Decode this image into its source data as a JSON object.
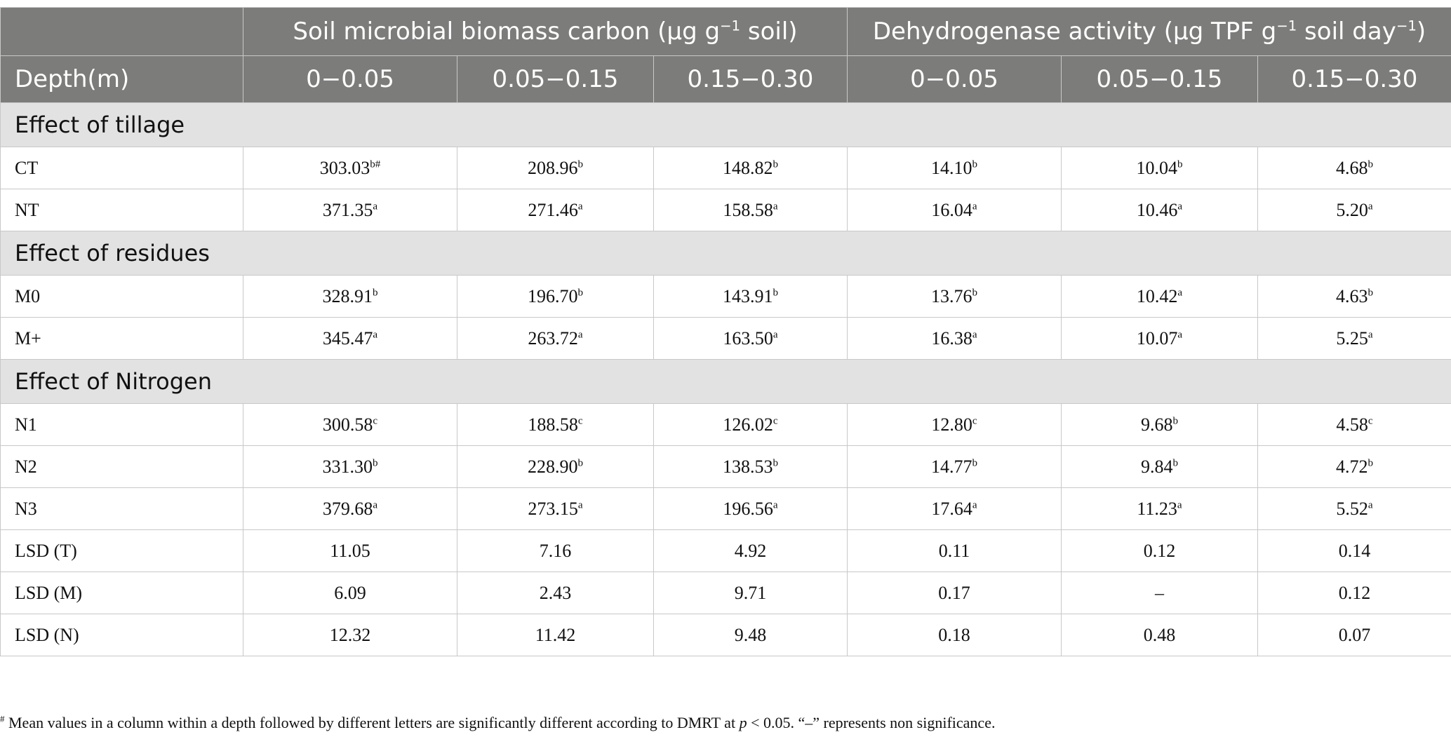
{
  "header": {
    "group1": "Soil microbial biomass carbon (μg g",
    "group1_sup": "−1",
    "group1_end": " soil)",
    "group2": "Dehydrogenase activity (μg TPF g",
    "group2_sup1": "−1",
    "group2_mid": " soil day",
    "group2_sup2": "−1",
    "group2_end": ")",
    "depth_label": "Depth(m)",
    "depths": [
      "0−0.05",
      "0.05−0.15",
      "0.15−0.30",
      "0−0.05",
      "0.05−0.15",
      "0.15−0.30"
    ]
  },
  "sections": [
    {
      "title": "Effect of tillage",
      "rows": [
        {
          "label": "CT",
          "cells": [
            {
              "v": "303.03",
              "s": "b#"
            },
            {
              "v": "208.96",
              "s": "b"
            },
            {
              "v": "148.82",
              "s": "b"
            },
            {
              "v": "14.10",
              "s": "b"
            },
            {
              "v": "10.04",
              "s": "b"
            },
            {
              "v": "4.68",
              "s": "b"
            }
          ]
        },
        {
          "label": "NT",
          "cells": [
            {
              "v": "371.35",
              "s": "a"
            },
            {
              "v": "271.46",
              "s": "a"
            },
            {
              "v": "158.58",
              "s": "a"
            },
            {
              "v": "16.04",
              "s": "a"
            },
            {
              "v": "10.46",
              "s": "a"
            },
            {
              "v": "5.20",
              "s": "a"
            }
          ]
        }
      ]
    },
    {
      "title": "Effect of residues",
      "rows": [
        {
          "label": "M0",
          "cells": [
            {
              "v": "328.91",
              "s": "b"
            },
            {
              "v": "196.70",
              "s": "b"
            },
            {
              "v": "143.91",
              "s": "b"
            },
            {
              "v": "13.76",
              "s": "b"
            },
            {
              "v": "10.42",
              "s": "a"
            },
            {
              "v": "4.63",
              "s": "b"
            }
          ]
        },
        {
          "label": "M+",
          "cells": [
            {
              "v": "345.47",
              "s": "a"
            },
            {
              "v": "263.72",
              "s": "a"
            },
            {
              "v": "163.50",
              "s": "a"
            },
            {
              "v": "16.38",
              "s": "a"
            },
            {
              "v": "10.07",
              "s": "a"
            },
            {
              "v": "5.25",
              "s": "a"
            }
          ]
        }
      ]
    },
    {
      "title": "Effect of Nitrogen",
      "rows": [
        {
          "label": "N1",
          "cells": [
            {
              "v": "300.58",
              "s": "c"
            },
            {
              "v": "188.58",
              "s": "c"
            },
            {
              "v": "126.02",
              "s": "c"
            },
            {
              "v": "12.80",
              "s": "c"
            },
            {
              "v": "9.68",
              "s": "b"
            },
            {
              "v": "4.58",
              "s": "c"
            }
          ]
        },
        {
          "label": "N2",
          "cells": [
            {
              "v": "331.30",
              "s": "b"
            },
            {
              "v": "228.90",
              "s": "b"
            },
            {
              "v": "138.53",
              "s": "b"
            },
            {
              "v": "14.77",
              "s": "b"
            },
            {
              "v": "9.84",
              "s": "b"
            },
            {
              "v": "4.72",
              "s": "b"
            }
          ]
        },
        {
          "label": "N3",
          "cells": [
            {
              "v": "379.68",
              "s": "a"
            },
            {
              "v": "273.15",
              "s": "a"
            },
            {
              "v": "196.56",
              "s": "a"
            },
            {
              "v": "17.64",
              "s": "a"
            },
            {
              "v": "11.23",
              "s": "a"
            },
            {
              "v": "5.52",
              "s": "a"
            }
          ]
        },
        {
          "label": "LSD (T)",
          "cells": [
            {
              "v": "11.05",
              "s": ""
            },
            {
              "v": "7.16",
              "s": ""
            },
            {
              "v": "4.92",
              "s": ""
            },
            {
              "v": "0.11",
              "s": ""
            },
            {
              "v": "0.12",
              "s": ""
            },
            {
              "v": "0.14",
              "s": ""
            }
          ]
        },
        {
          "label": "LSD (M)",
          "cells": [
            {
              "v": "6.09",
              "s": ""
            },
            {
              "v": "2.43",
              "s": ""
            },
            {
              "v": "9.71",
              "s": ""
            },
            {
              "v": "0.17",
              "s": ""
            },
            {
              "v": "–",
              "s": ""
            },
            {
              "v": "0.12",
              "s": ""
            }
          ]
        },
        {
          "label": "LSD (N)",
          "cells": [
            {
              "v": "12.32",
              "s": ""
            },
            {
              "v": "11.42",
              "s": ""
            },
            {
              "v": "9.48",
              "s": ""
            },
            {
              "v": "0.18",
              "s": ""
            },
            {
              "v": "0.48",
              "s": ""
            },
            {
              "v": "0.07",
              "s": ""
            }
          ]
        }
      ]
    }
  ],
  "footnote": {
    "mark": "#",
    "text1": " Mean values in a column within a depth followed by different letters are significantly different according to DMRT at ",
    "p": "p",
    "text2": " < 0.05. “–” represents non significance."
  }
}
